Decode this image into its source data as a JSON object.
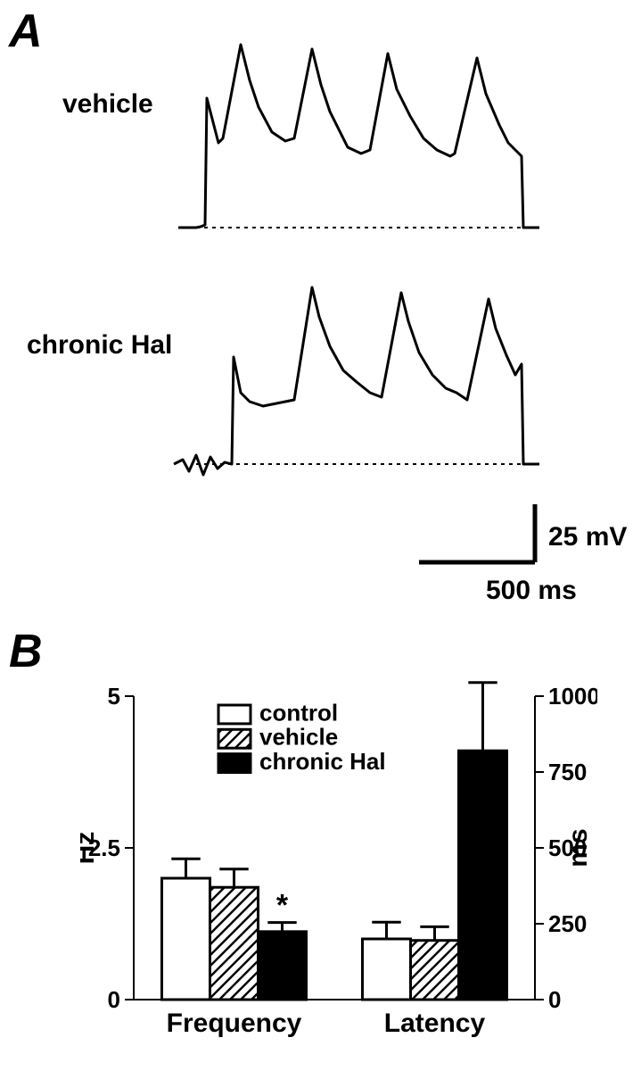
{
  "panelA": {
    "label": "A",
    "traces": {
      "vehicle": {
        "label": "vehicle"
      },
      "chronicHal": {
        "label": "chronic Hal"
      }
    },
    "scale": {
      "y_label": "25 mV",
      "x_label": "500 ms",
      "y_mV": 25,
      "x_ms": 500
    }
  },
  "panelB": {
    "label": "B",
    "groups": [
      "Frequency",
      "Latency"
    ],
    "series": [
      {
        "name": "control",
        "fill": "#ffffff",
        "pattern": "none"
      },
      {
        "name": "vehicle",
        "fill": "#ffffff",
        "pattern": "hatch"
      },
      {
        "name": "chronic Hal",
        "fill": "#000000",
        "pattern": "none"
      }
    ],
    "left_axis": {
      "title": "Hz",
      "min": 0,
      "max": 5,
      "ticks": [
        0,
        2.5,
        5
      ]
    },
    "right_axis": {
      "title": "ms",
      "min": 0,
      "max": 1000,
      "ticks": [
        0,
        250,
        500,
        750,
        1000
      ]
    },
    "data": {
      "Frequency": {
        "axis": "left",
        "values": {
          "control": 2.0,
          "vehicle": 1.85,
          "chronic Hal": 1.12
        },
        "errors": {
          "control": 0.32,
          "vehicle": 0.3,
          "chronic Hal": 0.15
        },
        "sig": {
          "chronic Hal": "*"
        }
      },
      "Latency": {
        "axis": "right",
        "values": {
          "control": 200,
          "vehicle": 195,
          "chronic Hal": 820
        },
        "errors": {
          "control": 55,
          "vehicle": 45,
          "chronic Hal": 225
        },
        "sig": {
          "chronic Hal": "*"
        }
      }
    },
    "colors": {
      "axis": "#000000",
      "error_bar": "#000000",
      "background": "#ffffff"
    },
    "bar_width_ratio": 0.8
  }
}
